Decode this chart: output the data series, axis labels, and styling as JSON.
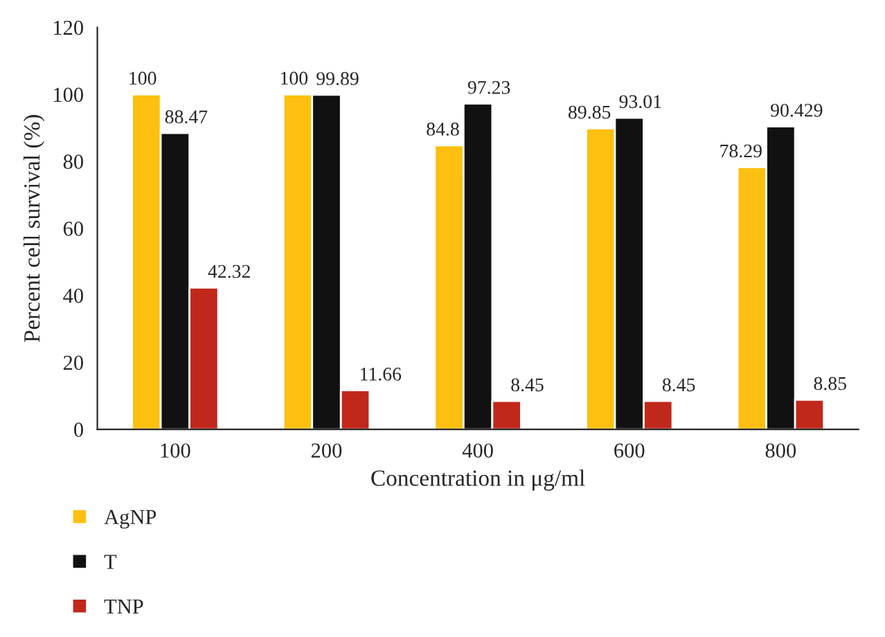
{
  "chart_data": {
    "type": "bar",
    "xlabel": "Concentration in μg/ml",
    "ylabel": "Percent cell survival (%)",
    "categories": [
      "100",
      "200",
      "400",
      "600",
      "800"
    ],
    "series": [
      {
        "name": "AgNP",
        "color": "#fdc010",
        "values": [
          100,
          100,
          84.8,
          89.85,
          78.29
        ]
      },
      {
        "name": "T",
        "color": "#111111",
        "values": [
          88.47,
          99.89,
          97.23,
          93.01,
          90.429
        ]
      },
      {
        "name": "TNP",
        "color": "#c0281c",
        "values": [
          42.32,
          11.66,
          8.45,
          8.45,
          8.85
        ]
      }
    ],
    "data_labels": true,
    "ylim": [
      0,
      120
    ],
    "yticks": [
      0,
      20,
      40,
      60,
      80,
      100,
      120
    ],
    "grid": false,
    "legend": "bottom left"
  }
}
